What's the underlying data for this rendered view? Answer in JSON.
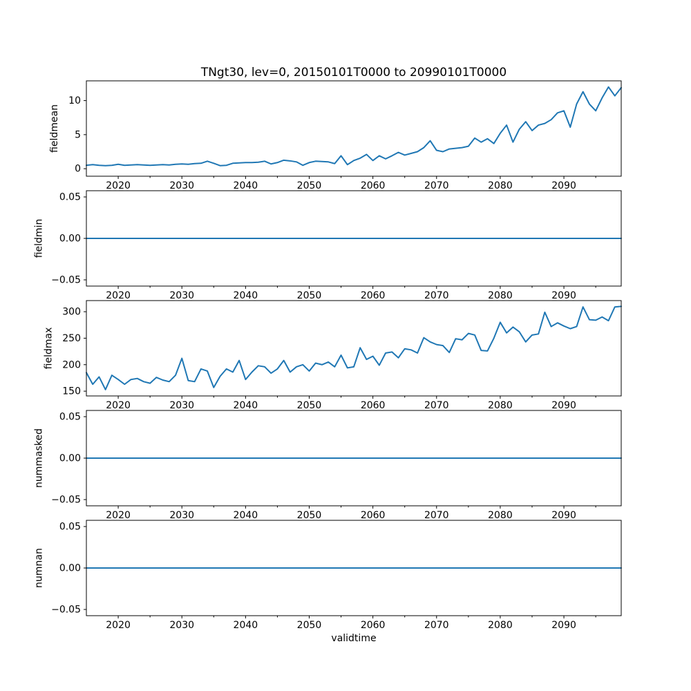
{
  "title": "TNgt30, lev=0, 20150101T0000 to 20990101T0000",
  "xlabel": "validtime",
  "line_color": "#1f77b4",
  "chart_data": {
    "type": "line",
    "x": {
      "label": "validtime",
      "start": 2015,
      "end": 2099,
      "step": 1
    },
    "xlim": [
      2015,
      2099
    ],
    "xticks_major": [
      2020,
      2030,
      2040,
      2050,
      2060,
      2070,
      2080,
      2090
    ],
    "xtick_labels": [
      "2020",
      "2030",
      "2040",
      "2050",
      "2060",
      "2070",
      "2080",
      "2090"
    ],
    "xticks_minor": [
      2025,
      2035,
      2045,
      2055,
      2065,
      2075,
      2085,
      2095
    ],
    "subplots": [
      {
        "name": "fieldmean",
        "ylabel": "fieldmean",
        "ylim": [
          -1.1,
          12.9
        ],
        "yticks": [
          0,
          5,
          10
        ],
        "ytick_labels": [
          "0",
          "5",
          "10"
        ],
        "max_tick_label_chars": 2,
        "values": [
          0.5,
          0.6,
          0.5,
          0.45,
          0.5,
          0.65,
          0.5,
          0.55,
          0.6,
          0.55,
          0.5,
          0.55,
          0.6,
          0.55,
          0.65,
          0.7,
          0.65,
          0.75,
          0.8,
          1.1,
          0.8,
          0.45,
          0.5,
          0.8,
          0.85,
          0.9,
          0.9,
          0.95,
          1.1,
          0.7,
          0.9,
          1.25,
          1.15,
          1.0,
          0.5,
          0.9,
          1.1,
          1.05,
          1.0,
          0.75,
          1.9,
          0.6,
          1.2,
          1.55,
          2.1,
          1.2,
          1.9,
          1.45,
          1.9,
          2.4,
          2.0,
          2.25,
          2.5,
          3.1,
          4.1,
          2.7,
          2.5,
          2.9,
          3.0,
          3.1,
          3.3,
          4.5,
          3.9,
          4.4,
          3.7,
          5.2,
          6.4,
          3.9,
          5.8,
          6.9,
          5.6,
          6.4,
          6.65,
          7.2,
          8.2,
          8.5,
          6.1,
          9.5,
          11.3,
          9.5,
          8.5,
          10.4,
          12.0,
          10.7,
          11.9
        ]
      },
      {
        "name": "fieldmin",
        "ylabel": "fieldmin",
        "ylim": [
          -0.0575,
          0.0575
        ],
        "yticks": [
          -0.05,
          0.0,
          0.05
        ],
        "ytick_labels": [
          "−0.05",
          "0.00",
          "0.05"
        ],
        "max_tick_label_chars": 5,
        "constant": 0
      },
      {
        "name": "fieldmax",
        "ylabel": "fieldmax",
        "ylim": [
          141,
          321
        ],
        "yticks": [
          150,
          200,
          250,
          300
        ],
        "ytick_labels": [
          "150",
          "200",
          "250",
          "300"
        ],
        "max_tick_label_chars": 3,
        "values": [
          185,
          163,
          177,
          153,
          180,
          172,
          163,
          172,
          174,
          168,
          165,
          176,
          171,
          168,
          180,
          212,
          170,
          168,
          192,
          188,
          157,
          178,
          192,
          186,
          208,
          172,
          186,
          198,
          196,
          184,
          192,
          208,
          186,
          196,
          200,
          188,
          203,
          200,
          205,
          196,
          218,
          194,
          196,
          232,
          210,
          216,
          199,
          222,
          224,
          213,
          230,
          228,
          222,
          251,
          243,
          238,
          236,
          223,
          249,
          247,
          259,
          256,
          227,
          226,
          250,
          280,
          260,
          271,
          262,
          243,
          256,
          258,
          299,
          272,
          279,
          273,
          268,
          272,
          309,
          285,
          284,
          290,
          283,
          309,
          310
        ]
      },
      {
        "name": "nummasked",
        "ylabel": "nummasked",
        "ylim": [
          -0.0575,
          0.0575
        ],
        "yticks": [
          -0.05,
          0.0,
          0.05
        ],
        "ytick_labels": [
          "−0.05",
          "0.00",
          "0.05"
        ],
        "max_tick_label_chars": 5,
        "constant": 0
      },
      {
        "name": "numnan",
        "ylabel": "numnan",
        "ylim": [
          -0.0575,
          0.0575
        ],
        "yticks": [
          -0.05,
          0.0,
          0.05
        ],
        "ytick_labels": [
          "−0.05",
          "0.00",
          "0.05"
        ],
        "max_tick_label_chars": 5,
        "constant": 0
      }
    ]
  }
}
